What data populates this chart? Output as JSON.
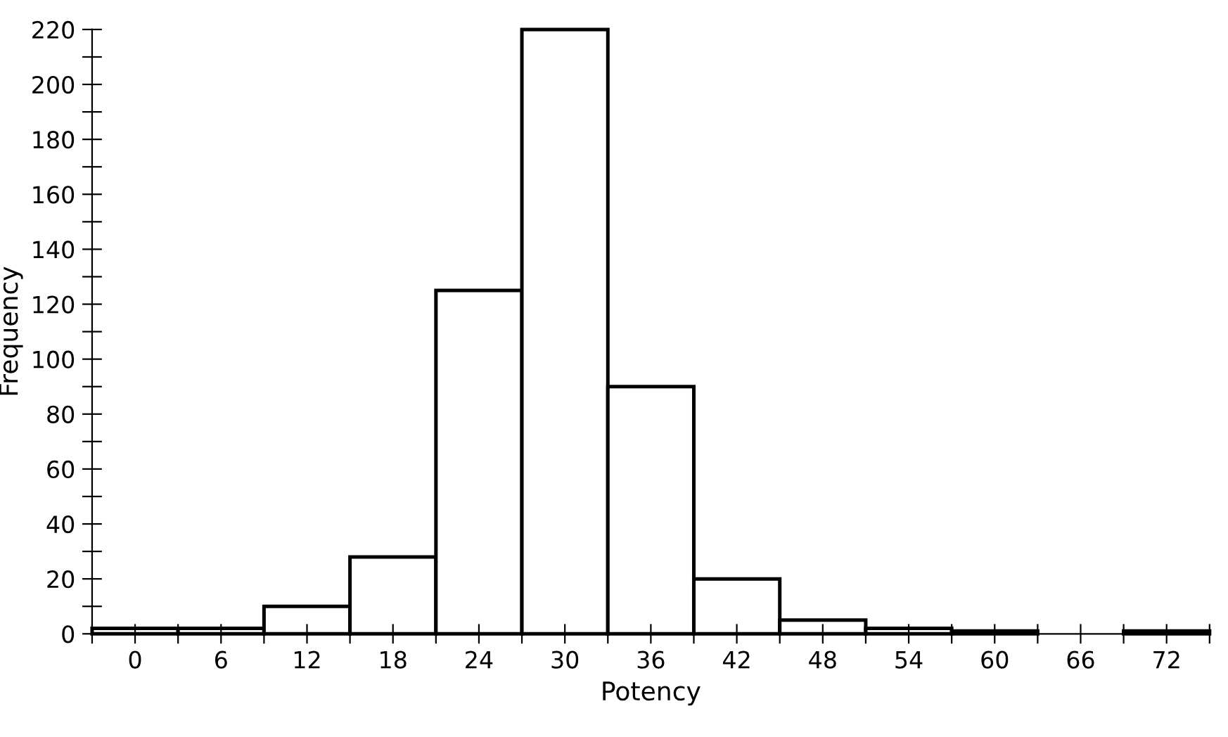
{
  "chart_data": {
    "type": "histogram",
    "xlabel": "Potency",
    "ylabel": "Frequency",
    "bins": [
      -3,
      3,
      9,
      15,
      21,
      27,
      33,
      39,
      45,
      51,
      57,
      63,
      69,
      75
    ],
    "values": [
      2,
      2,
      10,
      28,
      125,
      220,
      90,
      20,
      5,
      2,
      1,
      0,
      1
    ],
    "color": "#ffffff",
    "xlim": [
      -3,
      75
    ],
    "ylim": [
      0,
      220
    ],
    "xticks": [
      {
        "value": -3,
        "label": null
      },
      0,
      {
        "value": 3,
        "label": null
      },
      6,
      {
        "value": 9,
        "label": null
      },
      12,
      {
        "value": 15,
        "label": null
      },
      18,
      {
        "value": 21,
        "label": null
      },
      24,
      {
        "value": 27,
        "label": null
      },
      30,
      {
        "value": 33,
        "label": null
      },
      36,
      {
        "value": 39,
        "label": null
      },
      42,
      {
        "value": 45,
        "label": null
      },
      48,
      {
        "value": 51,
        "label": null
      },
      54,
      {
        "value": 57,
        "label": null
      },
      60,
      {
        "value": 63,
        "label": null
      },
      66,
      {
        "value": 69,
        "label": null
      },
      72,
      {
        "value": 75,
        "label": null
      }
    ],
    "yticks": [
      0,
      {
        "value": 10,
        "label": null
      },
      20,
      {
        "value": 30,
        "label": null
      },
      40,
      {
        "value": 50,
        "label": null
      },
      60,
      {
        "value": 70,
        "label": null
      },
      80,
      {
        "value": 90,
        "label": null
      },
      100,
      {
        "value": 110,
        "label": null
      },
      120,
      {
        "value": 130,
        "label": null
      },
      140,
      {
        "value": 150,
        "label": null
      },
      160,
      {
        "value": 170,
        "label": null
      },
      180,
      {
        "value": 190,
        "label": null
      },
      200,
      {
        "value": 210,
        "label": null
      },
      220
    ],
    "grid": false,
    "legend": false
  }
}
